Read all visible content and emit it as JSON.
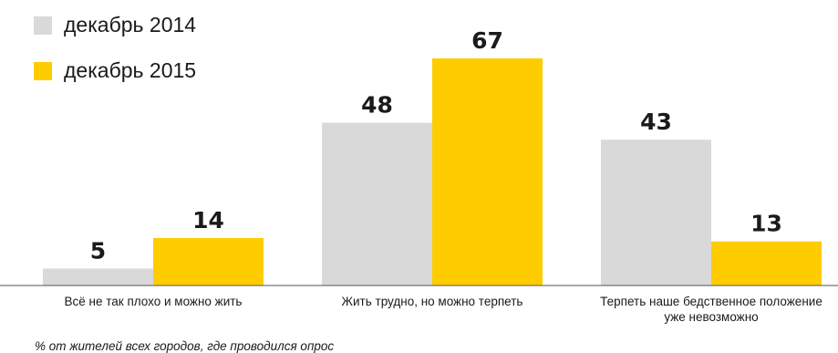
{
  "chart_data": {
    "type": "bar",
    "title": "",
    "xlabel": "",
    "ylabel": "",
    "ylim": [
      0,
      67
    ],
    "grid": false,
    "legend_position": "top-left",
    "categories": [
      [
        "Всё не так плохо и можно жить"
      ],
      [
        "Жить трудно, но можно терпеть"
      ],
      [
        "Терпеть наше бедственное положение",
        "уже невозможно"
      ]
    ],
    "series": [
      {
        "name": "декабрь 2014",
        "color": "#d9d9d9",
        "values": [
          5,
          48,
          43
        ]
      },
      {
        "name": "декабрь 2015",
        "color": "#ffcc00",
        "values": [
          14,
          67,
          13
        ]
      }
    ],
    "note": "% от жителей всех городов, где проводился опрос"
  }
}
